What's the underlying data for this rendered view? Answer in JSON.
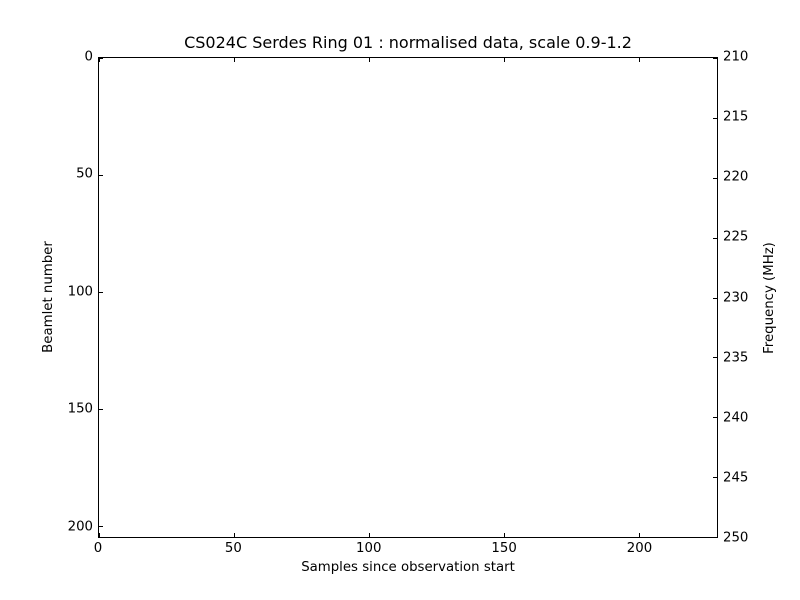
{
  "figure": {
    "background_color": "#ffffff",
    "foreground_color": "#000000"
  },
  "chart_data": {
    "type": "heatmap",
    "title": "CS024C Serdes Ring 01 : normalised data, scale 0.9-1.2",
    "xlabel": "Samples since observation start",
    "ylabel_left": "Beamlet number",
    "ylabel_right": "Frequency (MHz)",
    "x_ticks": [
      0,
      50,
      100,
      150,
      200
    ],
    "xlim": [
      0,
      229
    ],
    "y_left_ticks": [
      0,
      50,
      100,
      150,
      200
    ],
    "ylim_left": [
      0,
      204.8
    ],
    "y_left_inverted": true,
    "y_right_ticks": [
      210,
      215,
      220,
      225,
      230,
      235,
      240,
      245,
      250
    ],
    "ylim_right": [
      210,
      250
    ],
    "grid": false,
    "legend": false,
    "values": [],
    "plot_area_empty": true,
    "tick_direction": "in"
  }
}
